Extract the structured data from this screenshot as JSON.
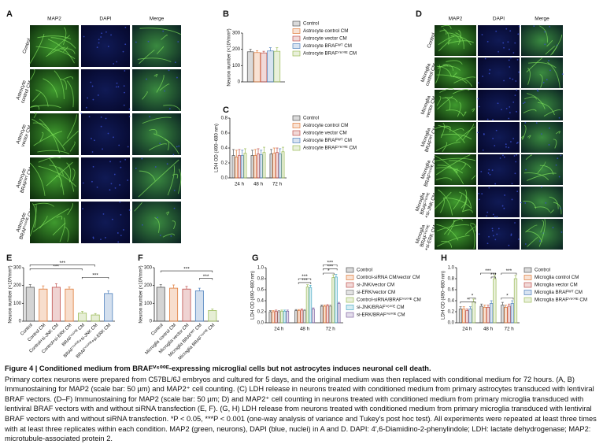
{
  "figure": {
    "panel_a": {
      "label": "A",
      "columns": [
        "MAP2",
        "DAPI",
        "Merge"
      ],
      "rows": [
        [
          "Control"
        ],
        [
          "Astrocyte",
          "control CM"
        ],
        [
          "Astrocyte",
          "vector CM"
        ],
        [
          "Astrocyte",
          "BRAFᵂᵀ CM"
        ],
        [
          "Astrocyte",
          "BRAFⱽ⁶⁰⁰ᴱ CM"
        ]
      ]
    },
    "panel_d": {
      "label": "D",
      "columns": [
        "MAP2",
        "DAPI",
        "Merge"
      ],
      "rows": [
        [
          "Control"
        ],
        [
          "Microglia",
          "control CM"
        ],
        [
          "Microglia",
          "vector CM"
        ],
        [
          "Microglia",
          "BRAFᵂᵀ CM"
        ],
        [
          "Microglia",
          "BRAFⱽ⁶⁰⁰ᴱ CM"
        ],
        [
          "Microglia",
          "BRAFⱽ⁶⁰⁰ᴱ",
          "+si-JNK CM"
        ],
        [
          "Microglia",
          "BRAFⱽ⁶⁰⁰ᴱ",
          "+si-ERK CM"
        ]
      ]
    }
  },
  "chart_data": [
    {
      "type": "bar",
      "label": "B",
      "ylabel": "Neuron number (×10³/mm²)",
      "categories": [
        null
      ],
      "series": [
        {
          "name": "Control",
          "color": "#555555",
          "values": [
            185
          ],
          "errors": [
            15
          ]
        },
        {
          "name": "Astrocyte control CM",
          "color": "#e07b39",
          "values": [
            180
          ],
          "errors": [
            12
          ]
        },
        {
          "name": "Astrocyte vector CM",
          "color": "#c0504d",
          "values": [
            178
          ],
          "errors": [
            10
          ]
        },
        {
          "name": "Astrocyte BRAFᵂᵀ CM",
          "color": "#4f81bd",
          "values": [
            190
          ],
          "errors": [
            20
          ]
        },
        {
          "name": "Astrocyte BRAFⱽ⁶⁰⁰ᴱ CM",
          "color": "#9bbb59",
          "values": [
            188
          ],
          "errors": [
            22
          ]
        }
      ],
      "ylim": [
        0,
        300
      ],
      "yticks": [
        0,
        100,
        200,
        300
      ],
      "legend": true
    },
    {
      "type": "bar",
      "label": "C",
      "ylabel": "LDH OD (490–680 nm)",
      "categories": [
        "24 h",
        "48 h",
        "72 h"
      ],
      "series": [
        {
          "name": "Control",
          "color": "#555555",
          "values": [
            0.3,
            0.3,
            0.32
          ],
          "errors": [
            0.08,
            0.07,
            0.06
          ]
        },
        {
          "name": "Astrocyte control CM",
          "color": "#e07b39",
          "values": [
            0.28,
            0.3,
            0.33
          ],
          "errors": [
            0.09,
            0.08,
            0.07
          ]
        },
        {
          "name": "Astrocyte vector CM",
          "color": "#c0504d",
          "values": [
            0.3,
            0.32,
            0.34
          ],
          "errors": [
            0.08,
            0.07,
            0.06
          ]
        },
        {
          "name": "Astrocyte BRAFᵂᵀ CM",
          "color": "#4f81bd",
          "values": [
            0.3,
            0.31,
            0.32
          ],
          "errors": [
            0.07,
            0.06,
            0.07
          ]
        },
        {
          "name": "Astrocyte BRAFⱽ⁶⁰⁰ᴱ CM",
          "color": "#9bbb59",
          "values": [
            0.33,
            0.34,
            0.35
          ],
          "errors": [
            0.06,
            0.07,
            0.06
          ]
        }
      ],
      "ylim": [
        0,
        0.8
      ],
      "yticks": [
        {
          "value": 0,
          "label": "0.0"
        },
        0.2,
        0.4,
        0.6,
        0.8
      ],
      "legend": true
    },
    {
      "type": "bar",
      "label": "E",
      "ylabel": "Neuron number (×10³/mm²)",
      "categories": [
        "Control",
        "Control CM",
        "Control+si-JNK CM",
        "Control+si-ERK CM",
        "BRAFⱽ⁶⁰⁰ᴱ CM",
        "BRAFⱽ⁶⁰⁰ᴱ+si-JNK CM",
        "BRAFⱽ⁶⁰⁰ᴱ+si-ERK CM"
      ],
      "values": [
        190,
        180,
        190,
        180,
        45,
        35,
        155
      ],
      "errors": [
        15,
        18,
        20,
        12,
        10,
        8,
        15
      ],
      "colors": [
        "#555555",
        "#e07b39",
        "#c0504d",
        "#e07b39",
        "#9bbb59",
        "#9bbb59",
        "#4f81bd"
      ],
      "ylim": [
        0,
        300
      ],
      "yticks": [
        0,
        100,
        200,
        300
      ],
      "annotations": [
        "***",
        "***",
        "***"
      ]
    },
    {
      "type": "bar",
      "label": "F",
      "ylabel": "Neuron number (×10³/mm²)",
      "categories": [
        "Control",
        "Microglia control CM",
        "Microglia vector CM",
        "Microglia BRAFᵂᵀ CM",
        "Microglia BRAFⱽ⁶⁰⁰ᴱ CM"
      ],
      "values": [
        190,
        185,
        180,
        170,
        60
      ],
      "errors": [
        15,
        18,
        15,
        15,
        8
      ],
      "colors": [
        "#555555",
        "#e07b39",
        "#c0504d",
        "#4f81bd",
        "#9bbb59"
      ],
      "ylim": [
        0,
        300
      ],
      "yticks": [
        0,
        100,
        200,
        300
      ],
      "annotations": [
        "***",
        "***"
      ]
    },
    {
      "type": "bar",
      "label": "G",
      "ylabel": "LDH OD (490–680 nm)",
      "categories": [
        "24 h",
        "48 h",
        "72 h"
      ],
      "series": [
        {
          "name": "Control",
          "color": "#555555",
          "values": [
            0.2,
            0.22,
            0.3
          ],
          "errors": [
            0.02,
            0.02,
            0.02
          ]
        },
        {
          "name": "Control-siRNA CM/vector CM",
          "color": "#e07b39",
          "values": [
            0.2,
            0.22,
            0.3
          ],
          "errors": [
            0.02,
            0.02,
            0.02
          ]
        },
        {
          "name": "si-JNK/vector CM",
          "color": "#c0504d",
          "values": [
            0.21,
            0.23,
            0.31
          ],
          "errors": [
            0.02,
            0.02,
            0.02
          ]
        },
        {
          "name": "si-ERK/vector CM",
          "color": "#7f7f7f",
          "values": [
            0.2,
            0.22,
            0.3
          ],
          "errors": [
            0.02,
            0.02,
            0.02
          ]
        },
        {
          "name": "Control-siRNA/BRAFⱽ⁶⁰⁰ᴱ CM",
          "color": "#9bbb59",
          "values": [
            0.21,
            0.65,
            0.82
          ],
          "errors": [
            0.02,
            0.04,
            0.05
          ]
        },
        {
          "name": "si-JNK/BRAFⱽ⁶⁰⁰ᴱ CM",
          "color": "#4bacc6",
          "values": [
            0.21,
            0.64,
            0.83
          ],
          "errors": [
            0.02,
            0.04,
            0.05
          ]
        },
        {
          "name": "si-ERK/BRAFⱽ⁶⁰⁰ᴱ CM",
          "color": "#8064a2",
          "values": [
            0.21,
            0.25,
            0.35
          ],
          "errors": [
            0.02,
            0.02,
            0.02
          ]
        }
      ],
      "ylim": [
        0,
        1
      ],
      "yticks": [
        {
          "value": 0,
          "label": "0.0"
        },
        0.2,
        0.4,
        0.6,
        0.8,
        {
          "value": 1,
          "label": "1.0"
        }
      ],
      "legend": true,
      "annotations": [
        "***",
        "***",
        "***",
        "***",
        "*"
      ]
    },
    {
      "type": "bar",
      "label": "H",
      "ylabel": "LDH OD (490–680 nm)",
      "categories": [
        "24 h",
        "48 h",
        "72 h"
      ],
      "series": [
        {
          "name": "Control",
          "color": "#555555",
          "values": [
            0.25,
            0.3,
            0.32
          ],
          "errors": [
            0.04,
            0.04,
            0.05
          ]
        },
        {
          "name": "Microglia control CM",
          "color": "#e07b39",
          "values": [
            0.25,
            0.28,
            0.28
          ],
          "errors": [
            0.04,
            0.04,
            0.04
          ]
        },
        {
          "name": "Microglia vector CM",
          "color": "#c0504d",
          "values": [
            0.22,
            0.28,
            0.3
          ],
          "errors": [
            0.03,
            0.04,
            0.04
          ]
        },
        {
          "name": "Microglia BRAFᵂᵀ CM",
          "color": "#4f81bd",
          "values": [
            0.25,
            0.35,
            0.35
          ],
          "errors": [
            0.04,
            0.05,
            0.05
          ]
        },
        {
          "name": "Microglia BRAFⱽ⁶⁰⁰ᴱ CM",
          "color": "#9bbb59",
          "values": [
            0.38,
            0.8,
            0.8
          ],
          "errors": [
            0.05,
            0.06,
            0.06
          ]
        }
      ],
      "ylim": [
        0,
        1
      ],
      "yticks": [
        {
          "value": 0,
          "label": "0.0"
        },
        0.2,
        0.4,
        0.6,
        0.8,
        {
          "value": 1,
          "label": "1.0"
        }
      ],
      "legend": true,
      "annotations": [
        "*",
        "*",
        "***",
        "***",
        "*",
        "***"
      ]
    }
  ],
  "caption": {
    "title": "Figure 4 | Conditioned medium from BRAFⱽ⁶⁰⁰ᴱ-expressing microglial cells but not astrocytes induces neuronal cell death.",
    "body": "Primary cortex neurons were prepared from C57BL/6J embryos and cultured for 5 days, and the original medium was then replaced with conditional medium for 72 hours. (A, B) Immunostaining for MAP2 (scale bar: 50 µm) and MAP2⁺ cell counting. (C) LDH release in neurons treated with conditioned medium from primary astrocytes transduced with lentiviral BRAF vectors. (D–F) Immunostaining for MAP2 (scale bar: 50 µm; D) and MAP2⁺ cell counting in neurons treated with conditioned medium from primary microglia transduced with lentiviral BRAF vectors with and without siRNA transfection (E, F). (G, H) LDH release from neurons treated with conditioned medium from primary microglia transduced with lentiviral BRAF vectors with and without siRNA transfection. *P < 0.05, ***P < 0.001 (one-way analysis of variance and Tukey's post hoc test). All experiments were repeated at least three times with at least three replicates within each condition. MAP2 (green, neurons), DAPI (blue, nuclei) in A and D. DAPI: 4′,6-Diamidino-2-phenylindole; LDH: lactate dehydrogenase; MAP2: microtubule-associated protein 2."
  }
}
